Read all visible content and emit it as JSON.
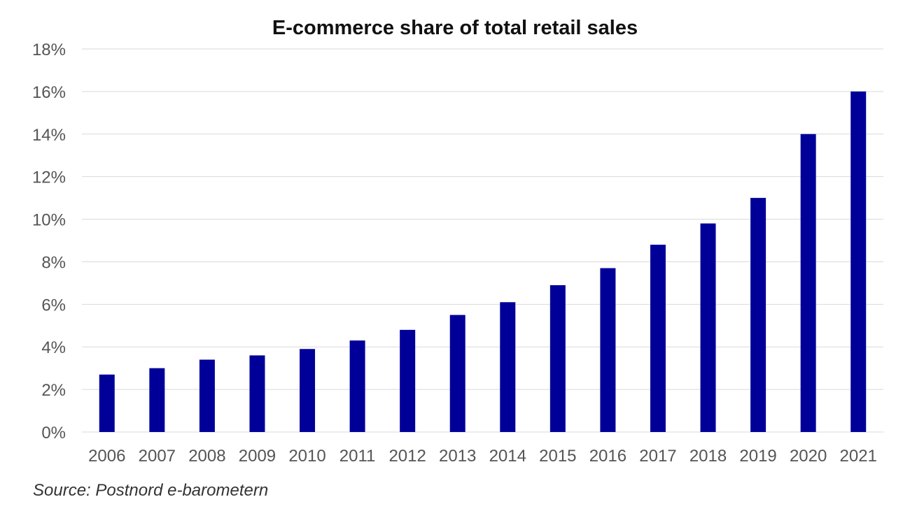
{
  "chart_data": {
    "type": "bar",
    "title": "E-commerce share of total retail sales",
    "xlabel": "",
    "ylabel": "",
    "categories": [
      "2006",
      "2007",
      "2008",
      "2009",
      "2010",
      "2011",
      "2012",
      "2013",
      "2014",
      "2015",
      "2016",
      "2017",
      "2018",
      "2019",
      "2020",
      "2021"
    ],
    "values": [
      2.7,
      3.0,
      3.4,
      3.6,
      3.9,
      4.3,
      4.8,
      5.5,
      6.1,
      6.9,
      7.7,
      8.8,
      9.8,
      11.0,
      14.0,
      16.0
    ],
    "value_unit": "%",
    "ylim": [
      0,
      18
    ],
    "y_ticks": [
      "0%",
      "2%",
      "4%",
      "6%",
      "8%",
      "10%",
      "12%",
      "14%",
      "16%",
      "18%"
    ],
    "y_tick_values": [
      0,
      2,
      4,
      6,
      8,
      10,
      12,
      14,
      16,
      18
    ],
    "grid": true,
    "legend": false,
    "bar_color": "#000099"
  },
  "source": "Source: Postnord e-barometern"
}
